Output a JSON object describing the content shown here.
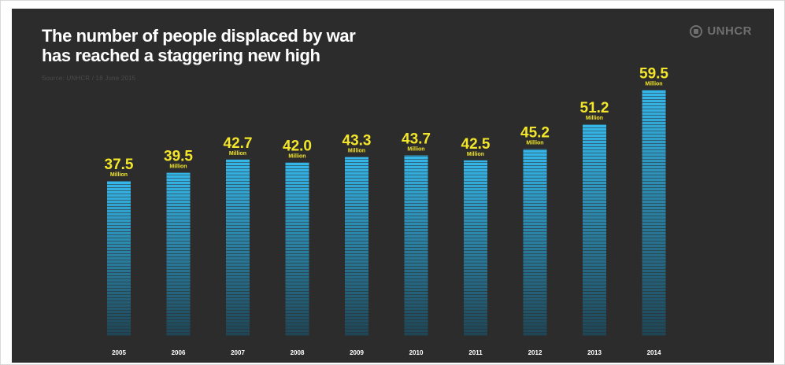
{
  "header": {
    "title_line1": "The number of people displaced by war",
    "title_line2": "has reached a staggering new high",
    "source": "Source: UNHCR / 18 June 2015",
    "logo": "UNHCR"
  },
  "chart_data": {
    "type": "bar",
    "title": "The number of people displaced by war has reached a staggering new high",
    "categories": [
      "2005",
      "2006",
      "2007",
      "2008",
      "2009",
      "2010",
      "2011",
      "2012",
      "2013",
      "2014"
    ],
    "values": [
      37.5,
      39.5,
      42.7,
      42.0,
      43.3,
      43.7,
      42.5,
      45.2,
      51.2,
      59.5
    ],
    "value_labels": [
      "37.5",
      "39.5",
      "42.7",
      "42.0",
      "43.3",
      "43.7",
      "42.5",
      "45.2",
      "51.2",
      "59.5"
    ],
    "unit_label": "Million",
    "xlabel": "",
    "ylabel": "",
    "ylim": [
      0,
      60
    ],
    "grid": false,
    "legend": "none",
    "colors": {
      "bar_top": "#35b7ea",
      "bar_bottom": "#1f4555",
      "value_label": "#f2e52a",
      "axis_label": "#ffffff"
    }
  }
}
